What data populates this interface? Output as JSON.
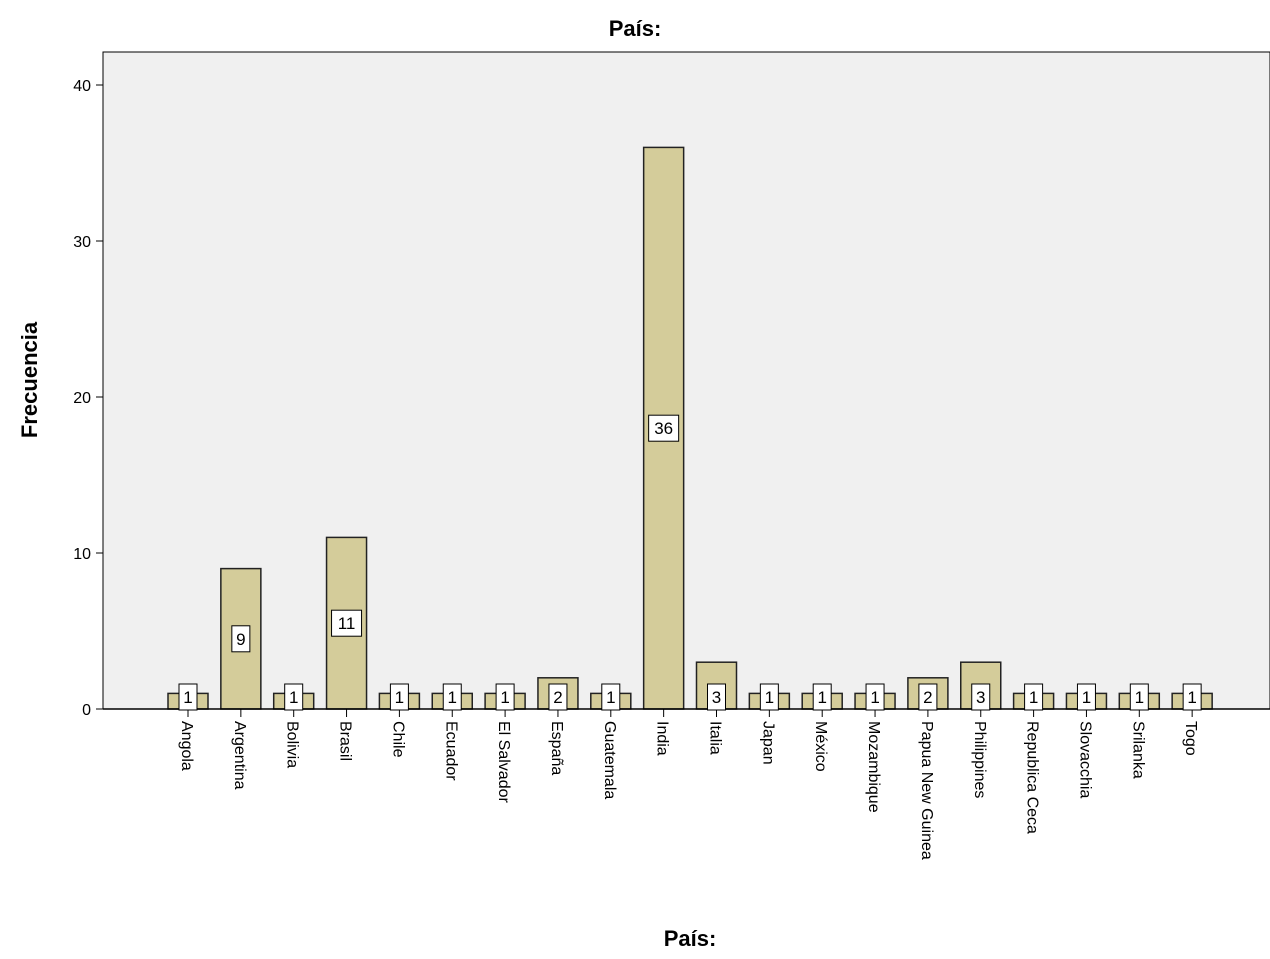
{
  "chart_data": {
    "type": "bar",
    "title": "País:",
    "xlabel": "País:",
    "ylabel": "Frecuencia",
    "ylim": [
      0,
      42
    ],
    "yticks": [
      0,
      10,
      20,
      30,
      40
    ],
    "grid": false,
    "categories": [
      "Angola",
      "Argentina",
      "Bolivia",
      "Brasil",
      "Chile",
      "Ecuador",
      "El Salvador",
      "España",
      "Guatemala",
      "India",
      "Italia",
      "Japan",
      "México",
      "Mozambique",
      "Papua New Guinea",
      "Philippines",
      "Republica Ceca",
      "Slovacchia",
      "Srilanka",
      "Togo"
    ],
    "values": [
      1,
      9,
      1,
      11,
      1,
      1,
      1,
      2,
      1,
      36,
      3,
      1,
      1,
      1,
      2,
      3,
      1,
      1,
      1,
      1
    ],
    "data_labels": [
      "1",
      "9",
      "1",
      "11",
      "1",
      "1",
      "1",
      "2",
      "1",
      "36",
      "3",
      "1",
      "1",
      "1",
      "2",
      "3",
      "1",
      "1",
      "1",
      "1"
    ],
    "colors": {
      "bar_fill": "#d4cc9a",
      "bar_stroke": "#222222",
      "plot_background": "#f0f0f0",
      "axis": "#000000"
    }
  }
}
